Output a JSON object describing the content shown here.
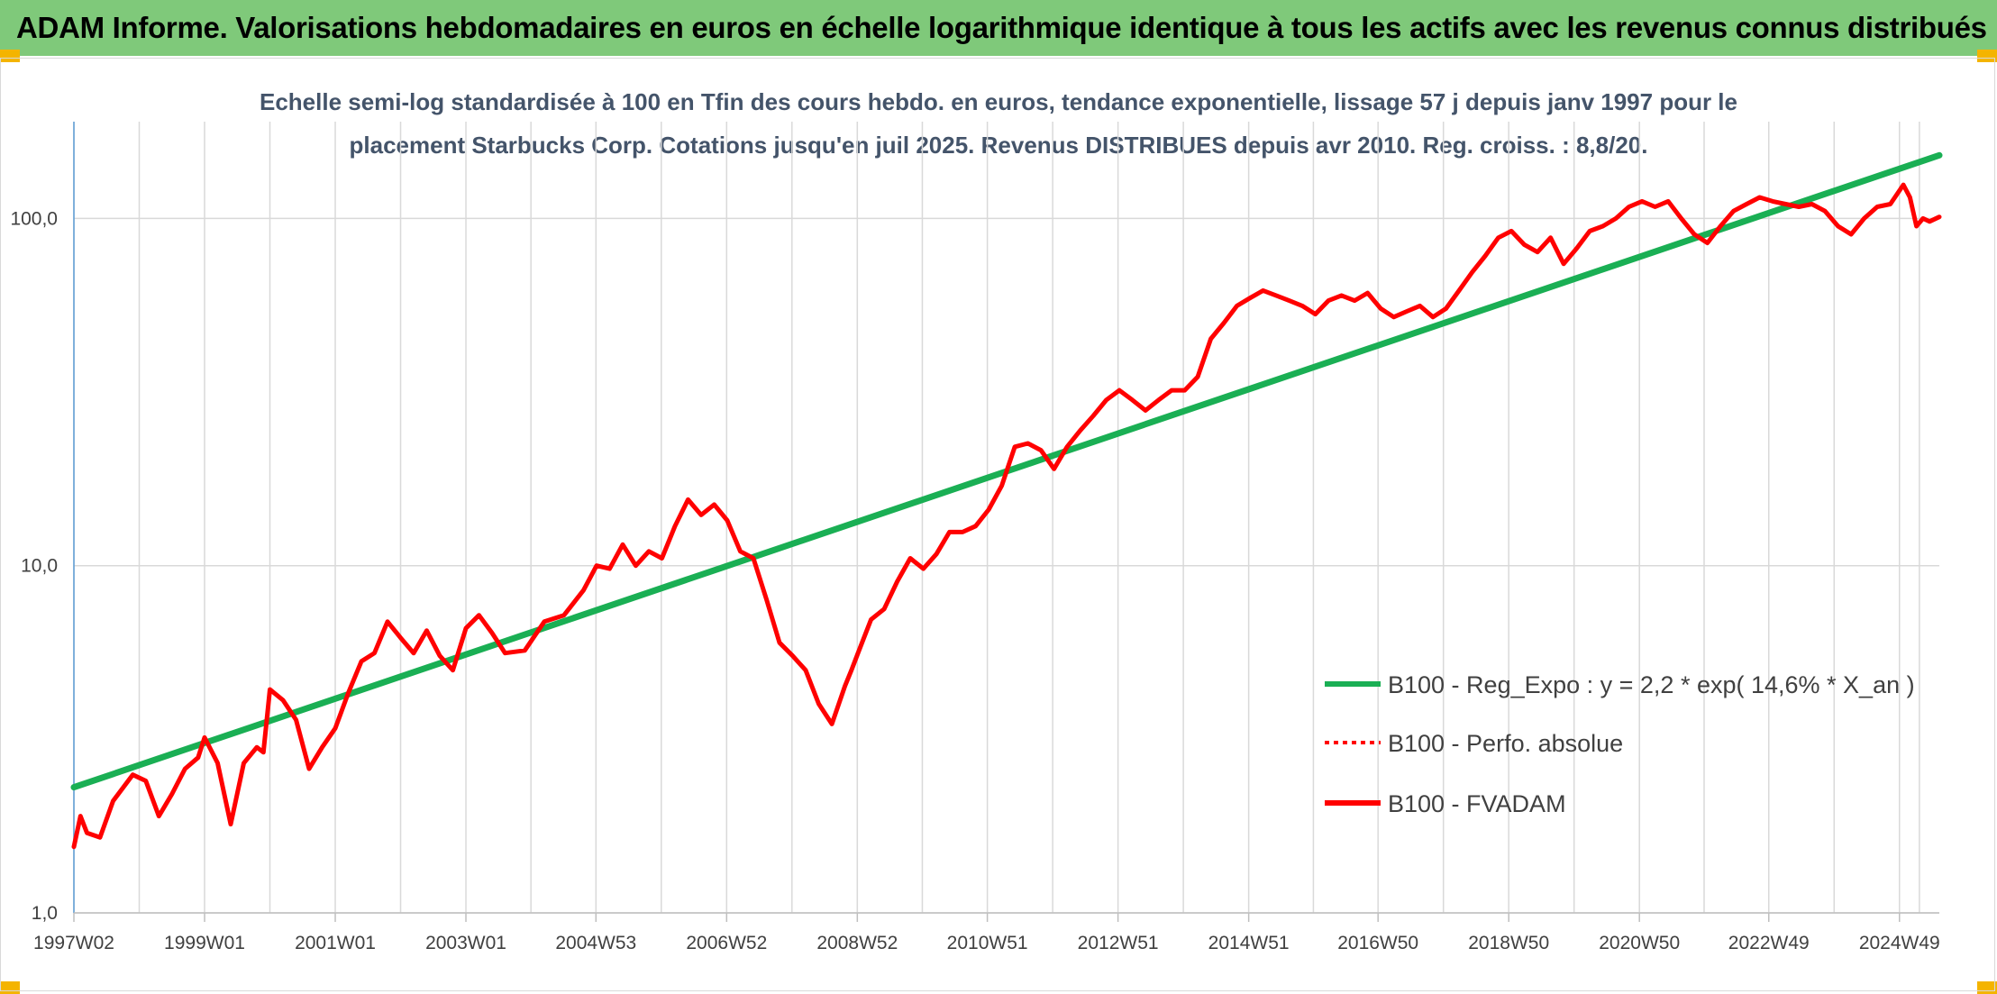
{
  "header": {
    "title": "ADAM Informe. Valorisations hebdomadaires en euros en échelle logarithmique identique à tous les actifs avec les revenus connus distribués"
  },
  "colors": {
    "header_bg": "#7fc97a",
    "trend": "#1aaf54",
    "fvadam": "#ff0000",
    "grid": "#d9d9d9"
  },
  "chart_data": {
    "type": "line",
    "subtitle_lines": [
      "Echelle semi-log standardisée à 100 en Tfin des cours hebdo. en euros, tendance exponentielle, lissage 57 j depuis janv 1997 pour le",
      "placement Starbucks Corp. Cotations jusqu'en juil 2025. Revenus DISTRIBUES depuis avr 2010. Reg. croiss. : 8,8/20."
    ],
    "y_scale": "log",
    "ylim": [
      1,
      190
    ],
    "y_ticks": [
      {
        "value": 1,
        "label": "1,0"
      },
      {
        "value": 10,
        "label": "10,0"
      },
      {
        "value": 100,
        "label": "100,0"
      }
    ],
    "x_range": [
      1997.0,
      2025.55
    ],
    "x_ticks": [
      {
        "x": 1997.0,
        "label": "1997W02"
      },
      {
        "x": 1999.0,
        "label": "1999W01"
      },
      {
        "x": 2001.0,
        "label": "2001W01"
      },
      {
        "x": 2003.0,
        "label": "2003W01"
      },
      {
        "x": 2004.99,
        "label": "2004W53"
      },
      {
        "x": 2006.99,
        "label": "2006W52"
      },
      {
        "x": 2008.99,
        "label": "2008W52"
      },
      {
        "x": 2010.98,
        "label": "2010W51"
      },
      {
        "x": 2012.98,
        "label": "2012W51"
      },
      {
        "x": 2014.98,
        "label": "2014W51"
      },
      {
        "x": 2016.96,
        "label": "2016W50"
      },
      {
        "x": 2018.96,
        "label": "2018W50"
      },
      {
        "x": 2020.96,
        "label": "2020W50"
      },
      {
        "x": 2022.94,
        "label": "2022W49"
      },
      {
        "x": 2024.94,
        "label": "2024W49"
      }
    ],
    "legend": {
      "position": "bottom-right",
      "entries": [
        {
          "label": "B100 - Reg_Expo : y = 2,2 * exp( 14,6% *  X_an )",
          "style": "solid-green"
        },
        {
          "label": "B100 - Perfo. absolue",
          "style": "dotted-red"
        },
        {
          "label": "B100 - FVADAM",
          "style": "solid-red"
        }
      ]
    },
    "series": [
      {
        "name": "B100 - Reg_Expo : y = 2,2 * exp( 14,6% *  X_an )",
        "style": "solid-green",
        "x": [
          1997.0,
          2025.55
        ],
        "values": [
          2.3,
          152
        ]
      },
      {
        "name": "B100 - FVADAM",
        "style": "solid-red",
        "x": [
          1997.0,
          1997.1,
          1997.2,
          1997.4,
          1997.6,
          1997.9,
          1998.1,
          1998.3,
          1998.5,
          1998.7,
          1998.9,
          1999.0,
          1999.2,
          1999.4,
          1999.6,
          1999.8,
          1999.9,
          2000.0,
          2000.2,
          2000.4,
          2000.6,
          2000.8,
          2001.0,
          2001.2,
          2001.4,
          2001.6,
          2001.8,
          2002.0,
          2002.2,
          2002.4,
          2002.6,
          2002.8,
          2003.0,
          2003.2,
          2003.4,
          2003.6,
          2003.9,
          2004.2,
          2004.5,
          2004.8,
          2005.0,
          2005.2,
          2005.4,
          2005.6,
          2005.8,
          2006.0,
          2006.2,
          2006.4,
          2006.6,
          2006.8,
          2007.0,
          2007.2,
          2007.4,
          2007.6,
          2007.8,
          2008.0,
          2008.2,
          2008.4,
          2008.6,
          2008.8,
          2008.9,
          2009.0,
          2009.2,
          2009.4,
          2009.6,
          2009.8,
          2010.0,
          2010.2,
          2010.4,
          2010.6,
          2010.8,
          2011.0,
          2011.2,
          2011.4,
          2011.6,
          2011.8,
          2012.0,
          2012.2,
          2012.4,
          2012.6,
          2012.8,
          2013.0,
          2013.2,
          2013.4,
          2013.6,
          2013.8,
          2014.0,
          2014.2,
          2014.4,
          2014.6,
          2014.8,
          2015.0,
          2015.2,
          2015.4,
          2015.6,
          2015.8,
          2016.0,
          2016.2,
          2016.4,
          2016.6,
          2016.8,
          2017.0,
          2017.2,
          2017.4,
          2017.6,
          2017.8,
          2018.0,
          2018.2,
          2018.4,
          2018.6,
          2018.8,
          2019.0,
          2019.2,
          2019.4,
          2019.6,
          2019.8,
          2020.0,
          2020.2,
          2020.4,
          2020.6,
          2020.8,
          2021.0,
          2021.2,
          2021.4,
          2021.6,
          2021.8,
          2022.0,
          2022.2,
          2022.4,
          2022.6,
          2022.8,
          2023.0,
          2023.2,
          2023.4,
          2023.6,
          2023.8,
          2024.0,
          2024.2,
          2024.4,
          2024.6,
          2024.8,
          2025.0,
          2025.1,
          2025.2,
          2025.3,
          2025.4,
          2025.55
        ],
        "values": [
          1.55,
          1.9,
          1.7,
          1.65,
          2.1,
          2.5,
          2.4,
          1.9,
          2.2,
          2.6,
          2.8,
          3.2,
          2.7,
          1.8,
          2.7,
          3.0,
          2.9,
          4.4,
          4.1,
          3.6,
          2.6,
          3.0,
          3.4,
          4.3,
          5.3,
          5.6,
          6.9,
          6.2,
          5.6,
          6.5,
          5.5,
          5.0,
          6.6,
          7.2,
          6.4,
          5.6,
          5.7,
          6.9,
          7.2,
          8.5,
          10.0,
          9.8,
          11.5,
          10.0,
          11.0,
          10.5,
          13.0,
          15.5,
          14.0,
          15.0,
          13.5,
          11.0,
          10.5,
          8.0,
          6.0,
          5.5,
          5.0,
          4.0,
          3.5,
          4.5,
          5.0,
          5.6,
          7.0,
          7.5,
          9.0,
          10.5,
          9.8,
          10.8,
          12.5,
          12.5,
          13.0,
          14.5,
          17.0,
          22.0,
          22.5,
          21.5,
          19.0,
          22.0,
          24.5,
          27.0,
          30.0,
          32.0,
          30.0,
          28.0,
          30.0,
          32.0,
          32.0,
          35.0,
          45.0,
          50.0,
          56.0,
          59.0,
          62.0,
          60.0,
          58.0,
          56.0,
          53.0,
          58.0,
          60.0,
          58.0,
          61.0,
          55.0,
          52.0,
          54.0,
          56.0,
          52.0,
          55.0,
          62.0,
          70.0,
          78.0,
          88.0,
          92.0,
          84.0,
          80.0,
          88.0,
          74.0,
          82.0,
          92.0,
          95.0,
          100.0,
          108.0,
          112.0,
          108.0,
          112.0,
          100.0,
          90.0,
          85.0,
          95.0,
          105.0,
          110.0,
          115.0,
          112.0,
          110.0,
          108.0,
          110.0,
          105.0,
          95.0,
          90.0,
          100.0,
          108.0,
          110.0,
          125.0,
          115.0,
          95.0,
          100.0,
          98.0,
          101.0
        ]
      }
    ]
  }
}
